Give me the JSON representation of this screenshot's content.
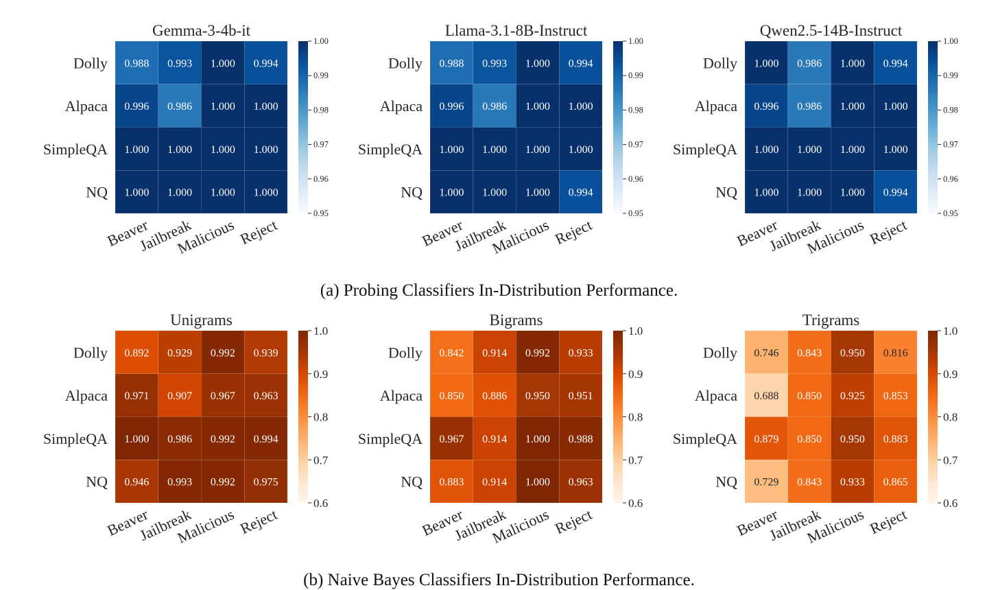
{
  "captions": {
    "a": "(a) Probing Classifiers In-Distribution Performance.",
    "b": "(b) Naive Bayes Classifiers In-Distribution Performance."
  },
  "chart_data": [
    {
      "type": "heatmap",
      "panel": "a",
      "title": "Gemma-3-4b-it",
      "colormap": "Blues",
      "rows": [
        "Dolly",
        "Alpaca",
        "SimpleQA",
        "NQ"
      ],
      "columns": [
        "Beaver",
        "Jailbreak",
        "Malicious",
        "Reject"
      ],
      "values": [
        [
          0.988,
          0.993,
          1.0,
          0.994
        ],
        [
          0.996,
          0.986,
          1.0,
          1.0
        ],
        [
          1.0,
          1.0,
          1.0,
          1.0
        ],
        [
          1.0,
          1.0,
          1.0,
          1.0
        ]
      ],
      "vrange": [
        0.95,
        1.0
      ],
      "colorbar_ticks": [
        "1.00",
        "0.99",
        "0.98",
        "0.97",
        "0.96",
        "0.95"
      ]
    },
    {
      "type": "heatmap",
      "panel": "a",
      "title": "Llama-3.1-8B-Instruct",
      "colormap": "Blues",
      "rows": [
        "Dolly",
        "Alpaca",
        "SimpleQA",
        "NQ"
      ],
      "columns": [
        "Beaver",
        "Jailbreak",
        "Malicious",
        "Reject"
      ],
      "values": [
        [
          0.988,
          0.993,
          1.0,
          0.994
        ],
        [
          0.996,
          0.986,
          1.0,
          1.0
        ],
        [
          1.0,
          1.0,
          1.0,
          1.0
        ],
        [
          1.0,
          1.0,
          1.0,
          0.994
        ]
      ],
      "vrange": [
        0.95,
        1.0
      ],
      "colorbar_ticks": [
        "1.00",
        "0.99",
        "0.98",
        "0.97",
        "0.96",
        "0.95"
      ]
    },
    {
      "type": "heatmap",
      "panel": "a",
      "title": "Qwen2.5-14B-Instruct",
      "colormap": "Blues",
      "rows": [
        "Dolly",
        "Alpaca",
        "SimpleQA",
        "NQ"
      ],
      "columns": [
        "Beaver",
        "Jailbreak",
        "Malicious",
        "Reject"
      ],
      "values": [
        [
          1.0,
          0.986,
          1.0,
          0.994
        ],
        [
          0.996,
          0.986,
          1.0,
          1.0
        ],
        [
          1.0,
          1.0,
          1.0,
          1.0
        ],
        [
          1.0,
          1.0,
          1.0,
          0.994
        ]
      ],
      "vrange": [
        0.95,
        1.0
      ],
      "colorbar_ticks": [
        "1.00",
        "0.99",
        "0.98",
        "0.97",
        "0.96",
        "0.95"
      ]
    },
    {
      "type": "heatmap",
      "panel": "b",
      "title": "Unigrams",
      "colormap": "Oranges",
      "rows": [
        "Dolly",
        "Alpaca",
        "SimpleQA",
        "NQ"
      ],
      "columns": [
        "Beaver",
        "Jailbreak",
        "Malicious",
        "Reject"
      ],
      "values": [
        [
          0.892,
          0.929,
          0.992,
          0.939
        ],
        [
          0.971,
          0.907,
          0.967,
          0.963
        ],
        [
          1.0,
          0.986,
          0.992,
          0.994
        ],
        [
          0.946,
          0.993,
          0.992,
          0.975
        ]
      ],
      "vrange": [
        0.6,
        1.0
      ],
      "colorbar_ticks": [
        "1.0",
        "0.9",
        "0.8",
        "0.7",
        "0.6"
      ]
    },
    {
      "type": "heatmap",
      "panel": "b",
      "title": "Bigrams",
      "colormap": "Oranges",
      "rows": [
        "Dolly",
        "Alpaca",
        "SimpleQA",
        "NQ"
      ],
      "columns": [
        "Beaver",
        "Jailbreak",
        "Malicious",
        "Reject"
      ],
      "values": [
        [
          0.842,
          0.914,
          0.992,
          0.933
        ],
        [
          0.85,
          0.886,
          0.95,
          0.951
        ],
        [
          0.967,
          0.914,
          1.0,
          0.988
        ],
        [
          0.883,
          0.914,
          1.0,
          0.963
        ]
      ],
      "vrange": [
        0.6,
        1.0
      ],
      "colorbar_ticks": [
        "1.0",
        "0.9",
        "0.8",
        "0.7",
        "0.6"
      ]
    },
    {
      "type": "heatmap",
      "panel": "b",
      "title": "Trigrams",
      "colormap": "Oranges",
      "rows": [
        "Dolly",
        "Alpaca",
        "SimpleQA",
        "NQ"
      ],
      "columns": [
        "Beaver",
        "Jailbreak",
        "Malicious",
        "Reject"
      ],
      "values": [
        [
          0.746,
          0.843,
          0.95,
          0.816
        ],
        [
          0.688,
          0.85,
          0.925,
          0.853
        ],
        [
          0.879,
          0.85,
          0.95,
          0.883
        ],
        [
          0.729,
          0.843,
          0.933,
          0.865
        ]
      ],
      "vrange": [
        0.6,
        1.0
      ],
      "colorbar_ticks": [
        "1.0",
        "0.9",
        "0.8",
        "0.7",
        "0.6"
      ]
    }
  ]
}
